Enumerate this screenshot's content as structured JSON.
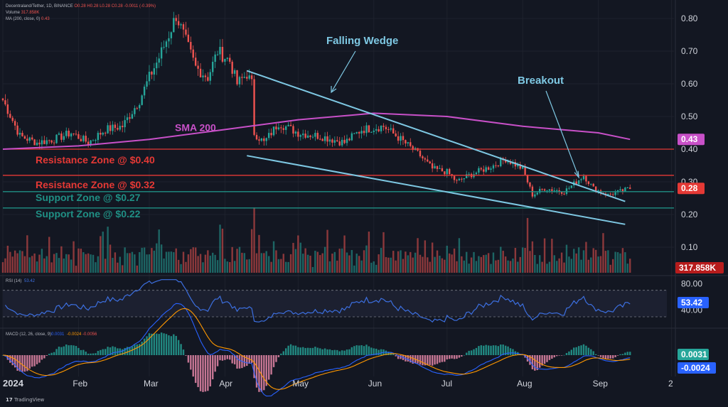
{
  "header": {
    "symbol_line": "Decentraland/Tether, 1D, BINANCE",
    "ohlc": "O0.28 H0.28 L0.28 C0.28 -0.0011 (-0.39%)",
    "volume_label": "Volume",
    "volume_value": "317.858K",
    "ma_label": "MA (200, close, 0)",
    "ma_value": "0.43"
  },
  "footer": {
    "logo_icon": "tradingview-logo-icon",
    "logo_text": "TradingView"
  },
  "colors": {
    "background": "#131722",
    "up": "#26a69a",
    "down": "#ef5350",
    "sma": "#c850c8",
    "wedge": "#7ec8e3",
    "resistance": "#e53935",
    "support": "#1f8f84",
    "rsi": "#3c6fe0",
    "macd": "#2962ff",
    "signal": "#ff9800"
  },
  "chart_data": [
    {
      "type": "candlestick",
      "title": "Decentraland/Tether, 1D, BINANCE",
      "y_ticks": [
        "0.80",
        "0.70",
        "0.60",
        "0.50",
        "0.40",
        "0.30",
        "0.20",
        "0.10"
      ],
      "x_ticks": [
        "2024",
        "Feb",
        "Mar",
        "Apr",
        "May",
        "Jun",
        "Jul",
        "Aug",
        "Sep",
        "2"
      ],
      "ylim": [
        0.0,
        0.85
      ],
      "price_path_anchors": [
        [
          "2024-01-01",
          0.55
        ],
        [
          "2024-01-03",
          0.52
        ],
        [
          "2024-01-08",
          0.44
        ],
        [
          "2024-01-15",
          0.42
        ],
        [
          "2024-01-22",
          0.43
        ],
        [
          "2024-01-29",
          0.45
        ],
        [
          "2024-02-05",
          0.42
        ],
        [
          "2024-02-12",
          0.46
        ],
        [
          "2024-02-19",
          0.47
        ],
        [
          "2024-02-26",
          0.55
        ],
        [
          "2024-03-01",
          0.62
        ],
        [
          "2024-03-05",
          0.68
        ],
        [
          "2024-03-09",
          0.75
        ],
        [
          "2024-03-12",
          0.81
        ],
        [
          "2024-03-16",
          0.73
        ],
        [
          "2024-03-20",
          0.65
        ],
        [
          "2024-03-25",
          0.62
        ],
        [
          "2024-03-29",
          0.7
        ],
        [
          "2024-04-03",
          0.67
        ],
        [
          "2024-04-06",
          0.6
        ],
        [
          "2024-04-10",
          0.63
        ],
        [
          "2024-04-12",
          0.6
        ],
        [
          "2024-04-13",
          0.45
        ],
        [
          "2024-04-17",
          0.42
        ],
        [
          "2024-04-23",
          0.48
        ],
        [
          "2024-05-01",
          0.45
        ],
        [
          "2024-05-10",
          0.44
        ],
        [
          "2024-05-20",
          0.42
        ],
        [
          "2024-05-27",
          0.46
        ],
        [
          "2024-06-05",
          0.47
        ],
        [
          "2024-06-12",
          0.43
        ],
        [
          "2024-06-20",
          0.38
        ],
        [
          "2024-06-25",
          0.34
        ],
        [
          "2024-07-01",
          0.33
        ],
        [
          "2024-07-05",
          0.3
        ],
        [
          "2024-07-10",
          0.32
        ],
        [
          "2024-07-20",
          0.35
        ],
        [
          "2024-07-25",
          0.37
        ],
        [
          "2024-08-01",
          0.34
        ],
        [
          "2024-08-05",
          0.26
        ],
        [
          "2024-08-10",
          0.28
        ],
        [
          "2024-08-18",
          0.27
        ],
        [
          "2024-08-23",
          0.3
        ],
        [
          "2024-08-26",
          0.32
        ],
        [
          "2024-08-30",
          0.28
        ],
        [
          "2024-09-05",
          0.26
        ],
        [
          "2024-09-10",
          0.27
        ],
        [
          "2024-09-14",
          0.28
        ]
      ],
      "levels": [
        {
          "label": "Resistance Zone @ $0.40",
          "price": 0.4,
          "kind": "resistance"
        },
        {
          "label": "Resistance Zone @ $0.32",
          "price": 0.32,
          "kind": "resistance"
        },
        {
          "label": "Support Zone @ $0.27",
          "price": 0.27,
          "kind": "support"
        },
        {
          "label": "Support Zone @ $0.22",
          "price": 0.22,
          "kind": "support"
        }
      ],
      "wedge": {
        "label": "Falling Wedge",
        "upper": [
          [
            "2024-04-10",
            0.64
          ],
          [
            "2024-09-12",
            0.24
          ]
        ],
        "lower": [
          [
            "2024-04-10",
            0.38
          ],
          [
            "2024-09-12",
            0.17
          ]
        ]
      },
      "sma": {
        "label": "SMA 200",
        "points": [
          [
            "2024-01-01",
            0.4
          ],
          [
            "2024-02-01",
            0.41
          ],
          [
            "2024-03-01",
            0.43
          ],
          [
            "2024-04-01",
            0.46
          ],
          [
            "2024-05-01",
            0.49
          ],
          [
            "2024-06-01",
            0.51
          ],
          [
            "2024-07-01",
            0.5
          ],
          [
            "2024-08-01",
            0.47
          ],
          [
            "2024-09-01",
            0.45
          ],
          [
            "2024-09-14",
            0.43
          ]
        ]
      },
      "breakout": {
        "label": "Breakout",
        "date": "2024-08-24",
        "price": 0.305
      },
      "price_labels": [
        {
          "text": "0.43",
          "price": 0.43,
          "color": "#c850c8"
        },
        {
          "text": "0.28",
          "price": 0.28,
          "color": "#e53935"
        }
      ]
    },
    {
      "type": "bar",
      "title": "Volume",
      "last_value_label": "317.858K"
    },
    {
      "type": "line",
      "title": "RSI (14)",
      "last_value": "53.42",
      "y_ticks": [
        "80.00",
        "40.00"
      ],
      "ylim": [
        15,
        90
      ],
      "band": [
        30,
        70
      ]
    },
    {
      "type": "line",
      "title": "MACD (12, 26, close, 9)",
      "values_text": [
        "0.0031",
        "-0.0024",
        "-0.0056"
      ],
      "last_values": [
        "0.0031",
        "-0.0024"
      ],
      "series": [
        {
          "name": "MACD"
        },
        {
          "name": "Signal"
        },
        {
          "name": "Histogram"
        }
      ]
    }
  ]
}
